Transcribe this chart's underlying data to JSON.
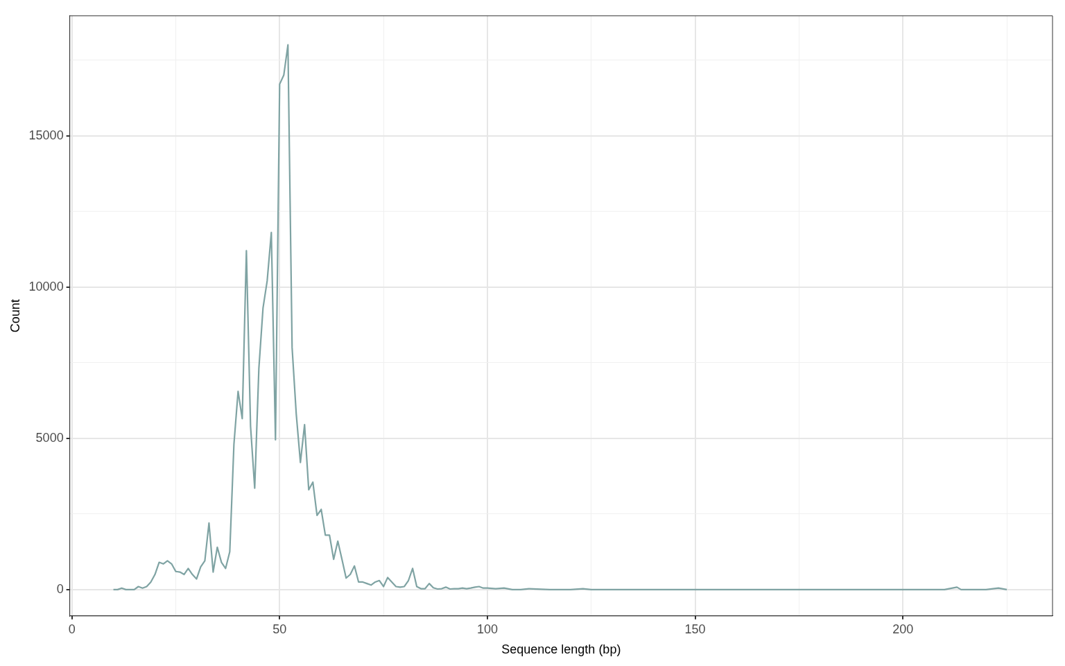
{
  "chart_data": {
    "type": "line",
    "xlabel": "Sequence length (bp)",
    "ylabel": "Count",
    "x": [
      10,
      11,
      12,
      13,
      14,
      15,
      16,
      17,
      18,
      19,
      20,
      21,
      22,
      23,
      24,
      25,
      26,
      27,
      28,
      29,
      30,
      31,
      32,
      33,
      34,
      35,
      36,
      37,
      38,
      39,
      40,
      41,
      42,
      43,
      44,
      45,
      46,
      47,
      48,
      49,
      50,
      51,
      52,
      53,
      54,
      55,
      56,
      57,
      58,
      59,
      60,
      61,
      62,
      63,
      64,
      65,
      66,
      67,
      68,
      69,
      70,
      71,
      72,
      73,
      74,
      75,
      76,
      77,
      78,
      79,
      80,
      81,
      82,
      83,
      84,
      85,
      86,
      87,
      88,
      89,
      90,
      91,
      92,
      93,
      94,
      95,
      96,
      97,
      98,
      99,
      100,
      102,
      104,
      106,
      108,
      110,
      115,
      120,
      123,
      125,
      130,
      140,
      150,
      160,
      170,
      180,
      190,
      200,
      205,
      210,
      213,
      214,
      216,
      220,
      223,
      225
    ],
    "series": [
      {
        "color": "#7fa3a3",
        "values": [
          0,
          0,
          50,
          0,
          0,
          0,
          100,
          50,
          100,
          250,
          500,
          900,
          850,
          950,
          850,
          600,
          580,
          500,
          700,
          500,
          350,
          750,
          950,
          2200,
          580,
          1400,
          900,
          700,
          1250,
          4800,
          6550,
          5650,
          11200,
          5400,
          3350,
          7300,
          9300,
          10200,
          11800,
          4950,
          16700,
          17000,
          18000,
          8000,
          5800,
          4200,
          5450,
          3300,
          3550,
          2450,
          2650,
          1800,
          1800,
          1000,
          1600,
          1000,
          380,
          500,
          780,
          250,
          250,
          200,
          150,
          250,
          300,
          100,
          400,
          250,
          100,
          80,
          100,
          300,
          700,
          100,
          30,
          30,
          200,
          60,
          20,
          30,
          80,
          20,
          30,
          30,
          50,
          30,
          50,
          80,
          100,
          50,
          50,
          30,
          50,
          0,
          0,
          30,
          0,
          0,
          30,
          0,
          0,
          0,
          0,
          0,
          0,
          0,
          0,
          0,
          0,
          0,
          80,
          0,
          0,
          0,
          50,
          0
        ]
      }
    ],
    "xlim": [
      -0.5,
      236
    ],
    "ylim": [
      -870,
      18960
    ],
    "xticks": [
      0,
      {
        "value": 25,
        "label": null
      },
      50,
      {
        "value": 75,
        "label": null
      },
      100,
      {
        "value": 125,
        "label": null
      },
      150,
      {
        "value": 175,
        "label": null
      },
      200,
      {
        "value": 225,
        "label": null
      }
    ],
    "yticks": [
      0,
      {
        "value": 2500,
        "label": null
      },
      5000,
      {
        "value": 7500,
        "label": null
      },
      10000,
      {
        "value": 12500,
        "label": null
      },
      15000,
      {
        "value": 17500,
        "label": null
      }
    ],
    "grid": true,
    "legend": false
  }
}
